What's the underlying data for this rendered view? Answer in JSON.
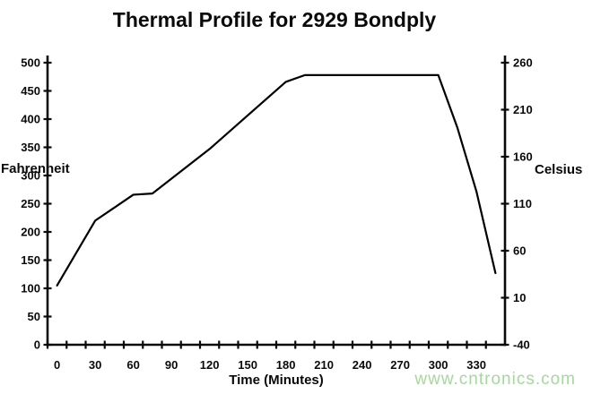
{
  "watermark": {
    "text": "www.cntronics.com",
    "color": "#a6d89e"
  },
  "chart_data": {
    "type": "line",
    "title": "Thermal Profile for 2929 Bondply",
    "xlabel": "Time (Minutes)",
    "ylabel_left": "Fahrenheit",
    "ylabel_right": "Celsius",
    "xlim": [
      0,
      360
    ],
    "ylim_left": [
      0,
      500
    ],
    "ylim_right": [
      -40,
      260
    ],
    "y_ticks_left": [
      500,
      450,
      400,
      350,
      300,
      250,
      200,
      150,
      100,
      50,
      0
    ],
    "y_ticks_right": [
      260,
      210,
      160,
      110,
      60,
      10,
      -40
    ],
    "x_ticks_labeled": [
      0,
      30,
      60,
      90,
      120,
      150,
      180,
      210,
      240,
      270,
      300,
      330
    ],
    "x_minor_tick_interval_minutes": 15,
    "grid": false,
    "legend": false,
    "axis_color": "#0a0a0a",
    "line_color": "#000000",
    "series": [
      {
        "x_minutes": [
          0,
          30,
          45,
          60,
          75,
          120,
          180,
          195,
          300,
          315,
          330,
          345
        ],
        "y_fahrenheit": [
          105,
          220,
          243,
          266,
          268,
          347,
          466,
          478,
          478,
          385,
          272,
          127
        ]
      }
    ]
  }
}
